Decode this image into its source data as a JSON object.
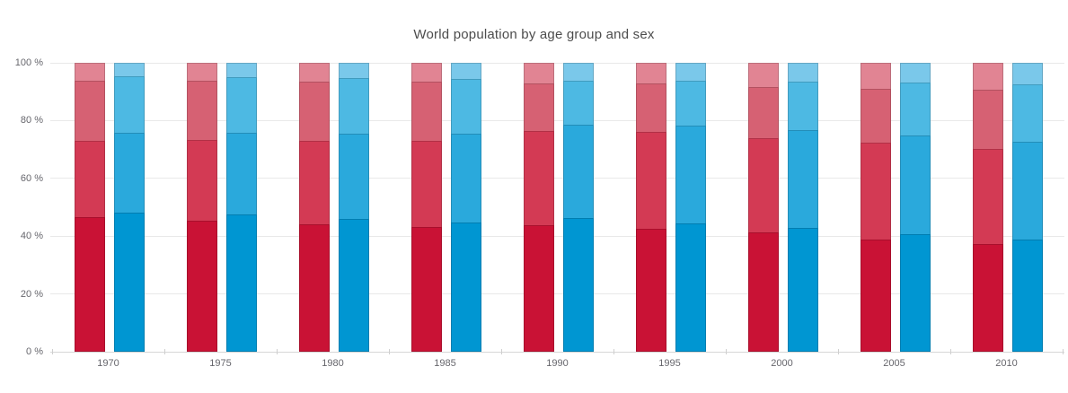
{
  "page": {
    "background": "#ffffff"
  },
  "header": {
    "title": "World population by age group and sex"
  },
  "axes": {
    "y_tick_labels": [
      "0 %",
      "20 %",
      "40 %",
      "60 %",
      "80 %",
      "100 %"
    ],
    "y_tick_values": [
      0,
      20,
      40,
      60,
      80,
      100
    ],
    "x_tick_labels": [
      "1970",
      "1975",
      "1980",
      "1985",
      "1990",
      "1995",
      "2000",
      "2005",
      "2010"
    ]
  },
  "chart_data": {
    "type": "bar",
    "variant": "stacked-percentage",
    "title": "World population by age group and sex",
    "xlabel": "",
    "ylabel": "",
    "ylim": [
      0,
      100
    ],
    "unit": "%",
    "grid": "horizontal",
    "legend": "none",
    "categories": [
      "1970",
      "1975",
      "1980",
      "1985",
      "1990",
      "1995",
      "2000",
      "2005",
      "2010"
    ],
    "note": "Each year has two 100%-stacked bars; segments listed bottom-to-top",
    "series": [
      {
        "name": "red-left-bar",
        "segment_colors_bottom_to_top": [
          "#c91235",
          "#d33a54",
          "#d66173",
          "#e18493"
        ],
        "stacks": [
          [
            46.7,
            26.4,
            20.9,
            6.0
          ],
          [
            45.3,
            27.8,
            20.4,
            6.5
          ],
          [
            44.1,
            28.8,
            20.4,
            6.7
          ],
          [
            43.1,
            29.8,
            20.4,
            6.7
          ],
          [
            43.9,
            32.5,
            16.4,
            7.2
          ],
          [
            42.5,
            33.5,
            16.8,
            7.2
          ],
          [
            41.3,
            32.5,
            17.6,
            8.6
          ],
          [
            38.9,
            33.5,
            18.5,
            9.1
          ],
          [
            37.2,
            32.8,
            20.5,
            9.5
          ]
        ]
      },
      {
        "name": "blue-right-bar",
        "segment_colors_bottom_to_top": [
          "#0096d2",
          "#2aa9dc",
          "#4db9e3",
          "#7ac8ea"
        ],
        "stacks": [
          [
            48.2,
            27.5,
            19.6,
            4.7
          ],
          [
            47.4,
            28.3,
            19.3,
            5.0
          ],
          [
            45.9,
            29.5,
            19.4,
            5.2
          ],
          [
            44.6,
            30.8,
            18.9,
            5.7
          ],
          [
            46.4,
            32.4,
            15.2,
            6.0
          ],
          [
            44.3,
            33.9,
            15.6,
            6.2
          ],
          [
            42.9,
            33.7,
            16.7,
            6.7
          ],
          [
            40.7,
            34.1,
            18.2,
            7.0
          ],
          [
            38.9,
            33.9,
            19.9,
            7.2
          ]
        ]
      }
    ]
  },
  "colors": {
    "gridline": "#e9e9e9",
    "axis_line": "#d6d6d6",
    "tick": "#cfcfcf",
    "title_text": "#4c4c4c",
    "axis_text": "#66666c"
  }
}
